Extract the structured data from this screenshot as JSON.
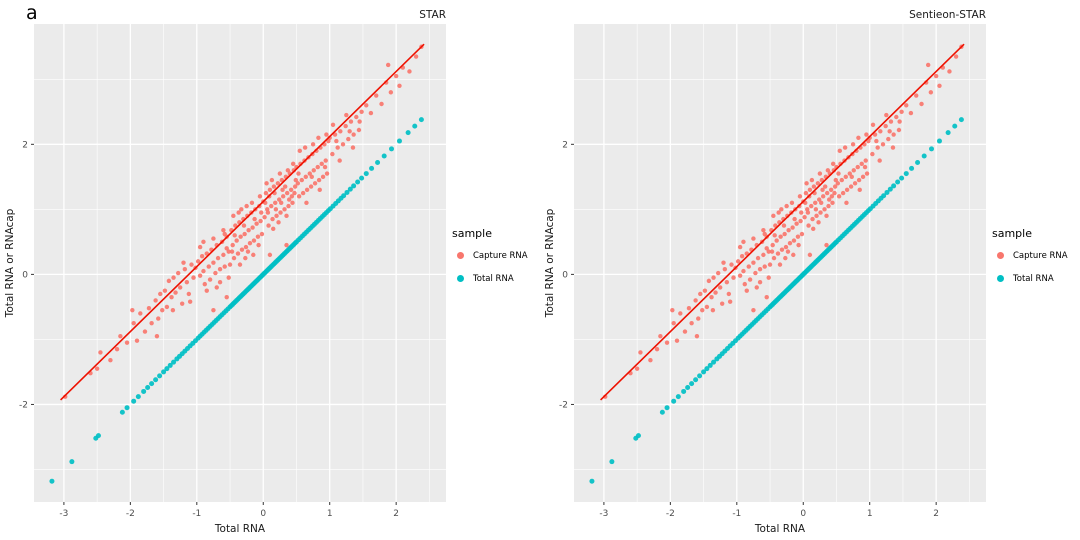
{
  "figure": {
    "panel_label": "a"
  },
  "panels": [
    {
      "title": "STAR"
    },
    {
      "title": "Sentieon-STAR"
    }
  ],
  "legend": {
    "title": "sample",
    "entries": [
      {
        "label": "Capture RNA",
        "color": "#F8766D"
      },
      {
        "label": "Total RNA",
        "color": "#00BFC4"
      }
    ]
  },
  "chart_data": {
    "type": "scatter",
    "panel_titles": [
      "STAR",
      "Sentieon-STAR"
    ],
    "xlabel": "Total RNA",
    "ylabel": "Total RNA or RNAcap",
    "x_ticks": [
      -3,
      -2,
      -1,
      0,
      1,
      2
    ],
    "y_ticks": [
      -2,
      0,
      2
    ],
    "x_minor": [
      -2.5,
      -1.5,
      -0.5,
      0.5,
      1.5,
      2.5
    ],
    "y_minor": [
      -3,
      -1,
      1,
      3
    ],
    "xlim": [
      -3.45,
      2.75
    ],
    "ylim": [
      -3.5,
      3.85
    ],
    "background": "#EBEBEB",
    "grid_color": "#FFFFFF",
    "tick_label_color": "#4D4D4D",
    "axis_label_color": "#1a1a1a",
    "fit_line": {
      "slope": 1,
      "intercept": 1.12,
      "x_range": [
        -3.05,
        2.42
      ],
      "color": "#EE1100",
      "width": 1.6
    },
    "series": [
      {
        "name": "Capture RNA",
        "color": "#F8766D",
        "radius": 2.2,
        "points": [
          [
            -2.98,
            -1.88
          ],
          [
            -2.6,
            -1.52
          ],
          [
            -2.45,
            -1.2
          ],
          [
            -2.3,
            -1.32
          ],
          [
            -2.15,
            -0.95
          ],
          [
            -2.05,
            -1.05
          ],
          [
            -2.5,
            -1.45
          ],
          [
            -2.2,
            -1.15
          ],
          [
            -1.95,
            -0.75
          ],
          [
            -1.9,
            -1.02
          ],
          [
            -1.85,
            -0.6
          ],
          [
            -1.78,
            -0.88
          ],
          [
            -1.72,
            -0.52
          ],
          [
            -1.68,
            -0.75
          ],
          [
            -1.62,
            -0.4
          ],
          [
            -1.58,
            -0.68
          ],
          [
            -1.55,
            -0.3
          ],
          [
            -1.52,
            -0.55
          ],
          [
            -1.97,
            -0.55
          ],
          [
            -1.6,
            -0.95
          ],
          [
            -1.48,
            -0.25
          ],
          [
            -1.45,
            -0.5
          ],
          [
            -1.42,
            -0.1
          ],
          [
            -1.38,
            -0.35
          ],
          [
            -1.35,
            -0.05
          ],
          [
            -1.32,
            -0.28
          ],
          [
            -1.28,
            0.02
          ],
          [
            -1.25,
            -0.2
          ],
          [
            -1.22,
            -0.45
          ],
          [
            -1.18,
            0.08
          ],
          [
            -1.15,
            -0.12
          ],
          [
            -1.12,
            -0.3
          ],
          [
            -1.08,
            0.15
          ],
          [
            -1.05,
            -0.05
          ],
          [
            -1.02,
            0.1
          ],
          [
            -1.36,
            -0.55
          ],
          [
            -1.2,
            0.18
          ],
          [
            -1.1,
            -0.42
          ],
          [
            -0.98,
            0.2
          ],
          [
            -0.95,
            -0.02
          ],
          [
            -0.92,
            0.28
          ],
          [
            -0.9,
            0.05
          ],
          [
            -0.88,
            -0.15
          ],
          [
            -0.85,
            0.32
          ],
          [
            -0.82,
            0.12
          ],
          [
            -0.8,
            -0.08
          ],
          [
            -0.78,
            0.38
          ],
          [
            -0.75,
            0.18
          ],
          [
            -0.72,
            0.02
          ],
          [
            -0.7,
            0.45
          ],
          [
            -0.68,
            0.25
          ],
          [
            -0.65,
            0.08
          ],
          [
            -0.62,
            0.5
          ],
          [
            -0.6,
            0.3
          ],
          [
            -0.58,
            0.12
          ],
          [
            -0.55,
            0.58
          ],
          [
            -0.52,
            0.35
          ],
          [
            -0.5,
            0.15
          ],
          [
            -0.95,
            0.42
          ],
          [
            -0.85,
            -0.25
          ],
          [
            -0.75,
            0.55
          ],
          [
            -0.65,
            -0.12
          ],
          [
            -0.58,
            0.62
          ],
          [
            -0.52,
            -0.05
          ],
          [
            -0.9,
            0.5
          ],
          [
            -0.7,
            -0.2
          ],
          [
            -0.6,
            0.68
          ],
          [
            -0.55,
            0.4
          ],
          [
            -0.75,
            -0.55
          ],
          [
            -0.48,
            0.68
          ],
          [
            -0.46,
            0.45
          ],
          [
            -0.44,
            0.25
          ],
          [
            -0.42,
            0.75
          ],
          [
            -0.4,
            0.52
          ],
          [
            -0.38,
            0.32
          ],
          [
            -0.36,
            0.8
          ],
          [
            -0.34,
            0.58
          ],
          [
            -0.32,
            0.38
          ],
          [
            -0.3,
            0.85
          ],
          [
            -0.28,
            0.62
          ],
          [
            -0.26,
            0.42
          ],
          [
            -0.24,
            0.9
          ],
          [
            -0.22,
            0.68
          ],
          [
            -0.2,
            0.48
          ],
          [
            -0.18,
            0.95
          ],
          [
            -0.16,
            0.72
          ],
          [
            -0.14,
            0.52
          ],
          [
            -0.12,
            1.0
          ],
          [
            -0.1,
            0.78
          ],
          [
            -0.08,
            0.58
          ],
          [
            -0.06,
            1.05
          ],
          [
            -0.04,
            0.82
          ],
          [
            -0.02,
            0.62
          ],
          [
            -0.45,
            0.9
          ],
          [
            -0.35,
            0.15
          ],
          [
            -0.25,
            1.05
          ],
          [
            -0.15,
            0.3
          ],
          [
            -0.05,
            1.2
          ],
          [
            -0.47,
            0.35
          ],
          [
            -0.37,
            0.95
          ],
          [
            -0.27,
            0.25
          ],
          [
            -0.17,
            1.1
          ],
          [
            -0.07,
            0.45
          ],
          [
            -0.43,
            0.6
          ],
          [
            -0.33,
            1.0
          ],
          [
            -0.23,
            0.35
          ],
          [
            -0.13,
            0.85
          ],
          [
            -0.03,
            0.95
          ],
          [
            -0.29,
            0.75
          ],
          [
            -0.55,
            -0.35
          ],
          [
            0.0,
            1.12
          ],
          [
            0.02,
            0.88
          ],
          [
            0.04,
            1.25
          ],
          [
            0.06,
            1.0
          ],
          [
            0.08,
            0.75
          ],
          [
            0.1,
            1.3
          ],
          [
            0.12,
            1.05
          ],
          [
            0.14,
            0.85
          ],
          [
            0.16,
            1.35
          ],
          [
            0.18,
            1.1
          ],
          [
            0.2,
            0.9
          ],
          [
            0.22,
            1.4
          ],
          [
            0.24,
            1.15
          ],
          [
            0.26,
            0.95
          ],
          [
            0.28,
            1.45
          ],
          [
            0.3,
            1.2
          ],
          [
            0.32,
            1.0
          ],
          [
            0.34,
            1.5
          ],
          [
            0.36,
            1.25
          ],
          [
            0.38,
            1.05
          ],
          [
            0.4,
            1.55
          ],
          [
            0.42,
            1.3
          ],
          [
            0.44,
            1.1
          ],
          [
            0.46,
            1.6
          ],
          [
            0.48,
            1.35
          ],
          [
            0.05,
            1.4
          ],
          [
            0.15,
            0.7
          ],
          [
            0.25,
            1.55
          ],
          [
            0.35,
            0.9
          ],
          [
            0.45,
            1.7
          ],
          [
            0.03,
            1.1
          ],
          [
            0.13,
            1.45
          ],
          [
            0.23,
            0.8
          ],
          [
            0.33,
            1.35
          ],
          [
            0.43,
            1.2
          ],
          [
            0.07,
            0.95
          ],
          [
            0.17,
            1.25
          ],
          [
            0.27,
            1.1
          ],
          [
            0.37,
            1.6
          ],
          [
            0.47,
            1.25
          ],
          [
            0.09,
            1.2
          ],
          [
            0.19,
            1.0
          ],
          [
            0.29,
            1.3
          ],
          [
            0.39,
            1.15
          ],
          [
            0.49,
            1.45
          ],
          [
            0.1,
            0.3
          ],
          [
            0.35,
            0.45
          ],
          [
            0.5,
            1.65
          ],
          [
            0.52,
            1.4
          ],
          [
            0.54,
            1.2
          ],
          [
            0.56,
            1.7
          ],
          [
            0.58,
            1.45
          ],
          [
            0.6,
            1.25
          ],
          [
            0.62,
            1.75
          ],
          [
            0.64,
            1.5
          ],
          [
            0.66,
            1.3
          ],
          [
            0.68,
            1.8
          ],
          [
            0.7,
            1.55
          ],
          [
            0.72,
            1.35
          ],
          [
            0.74,
            1.85
          ],
          [
            0.76,
            1.6
          ],
          [
            0.78,
            1.4
          ],
          [
            0.8,
            1.9
          ],
          [
            0.82,
            1.65
          ],
          [
            0.84,
            1.45
          ],
          [
            0.86,
            1.95
          ],
          [
            0.88,
            1.7
          ],
          [
            0.9,
            1.5
          ],
          [
            0.92,
            2.0
          ],
          [
            0.94,
            1.75
          ],
          [
            0.96,
            1.55
          ],
          [
            0.98,
            2.05
          ],
          [
            0.55,
            1.9
          ],
          [
            0.65,
            1.1
          ],
          [
            0.75,
            2.0
          ],
          [
            0.85,
            1.3
          ],
          [
            0.95,
            2.15
          ],
          [
            0.53,
            1.55
          ],
          [
            0.63,
            1.95
          ],
          [
            0.73,
            1.5
          ],
          [
            0.83,
            2.1
          ],
          [
            0.93,
            1.65
          ],
          [
            1.0,
            2.1
          ],
          [
            1.04,
            1.85
          ],
          [
            1.08,
            2.15
          ],
          [
            1.12,
            1.95
          ],
          [
            1.16,
            2.2
          ],
          [
            1.2,
            2.0
          ],
          [
            1.24,
            2.28
          ],
          [
            1.28,
            2.08
          ],
          [
            1.32,
            2.35
          ],
          [
            1.36,
            2.15
          ],
          [
            1.4,
            2.42
          ],
          [
            1.44,
            2.22
          ],
          [
            1.48,
            2.5
          ],
          [
            1.05,
            2.3
          ],
          [
            1.15,
            1.75
          ],
          [
            1.25,
            2.45
          ],
          [
            1.35,
            1.95
          ],
          [
            1.45,
            2.35
          ],
          [
            1.1,
            2.05
          ],
          [
            1.3,
            2.2
          ],
          [
            1.55,
            2.6
          ],
          [
            1.62,
            2.48
          ],
          [
            1.7,
            2.75
          ],
          [
            1.78,
            2.62
          ],
          [
            1.85,
            2.95
          ],
          [
            1.92,
            2.8
          ],
          [
            2.0,
            3.05
          ],
          [
            2.1,
            3.18
          ],
          [
            2.2,
            3.12
          ],
          [
            2.3,
            3.35
          ],
          [
            2.38,
            3.5
          ],
          [
            2.05,
            2.9
          ],
          [
            1.88,
            3.22
          ]
        ]
      },
      {
        "name": "Total RNA",
        "color": "#00BFC4",
        "radius": 2.5,
        "y_equals_x": true,
        "x": [
          -3.18,
          -2.88,
          -2.52,
          -2.48,
          -2.12,
          -2.05,
          -1.95,
          -1.88,
          -1.8,
          -1.74,
          -1.68,
          -1.62,
          -1.56,
          -1.5,
          -1.45,
          -1.4,
          -1.35,
          -1.3,
          -1.26,
          -1.22,
          -1.18,
          -1.14,
          -1.1,
          -1.06,
          -1.02,
          -0.98,
          -0.95,
          -0.92,
          -0.89,
          -0.86,
          -0.83,
          -0.8,
          -0.77,
          -0.74,
          -0.71,
          -0.68,
          -0.65,
          -0.62,
          -0.59,
          -0.56,
          -0.53,
          -0.5,
          -0.48,
          -0.46,
          -0.44,
          -0.42,
          -0.4,
          -0.38,
          -0.36,
          -0.34,
          -0.32,
          -0.3,
          -0.28,
          -0.26,
          -0.24,
          -0.22,
          -0.2,
          -0.18,
          -0.16,
          -0.14,
          -0.12,
          -0.1,
          -0.08,
          -0.06,
          -0.04,
          -0.02,
          0.0,
          0.02,
          0.04,
          0.06,
          0.08,
          0.1,
          0.12,
          0.14,
          0.16,
          0.18,
          0.2,
          0.22,
          0.24,
          0.26,
          0.28,
          0.3,
          0.32,
          0.34,
          0.36,
          0.38,
          0.4,
          0.42,
          0.44,
          0.46,
          0.48,
          0.5,
          0.53,
          0.56,
          0.59,
          0.62,
          0.65,
          0.68,
          0.71,
          0.74,
          0.77,
          0.8,
          0.83,
          0.86,
          0.89,
          0.92,
          0.95,
          0.98,
          1.01,
          1.05,
          1.09,
          1.13,
          1.17,
          1.21,
          1.26,
          1.31,
          1.36,
          1.42,
          1.48,
          1.55,
          1.63,
          1.72,
          1.82,
          1.93,
          2.05,
          2.18,
          2.28,
          2.38
        ]
      }
    ]
  }
}
